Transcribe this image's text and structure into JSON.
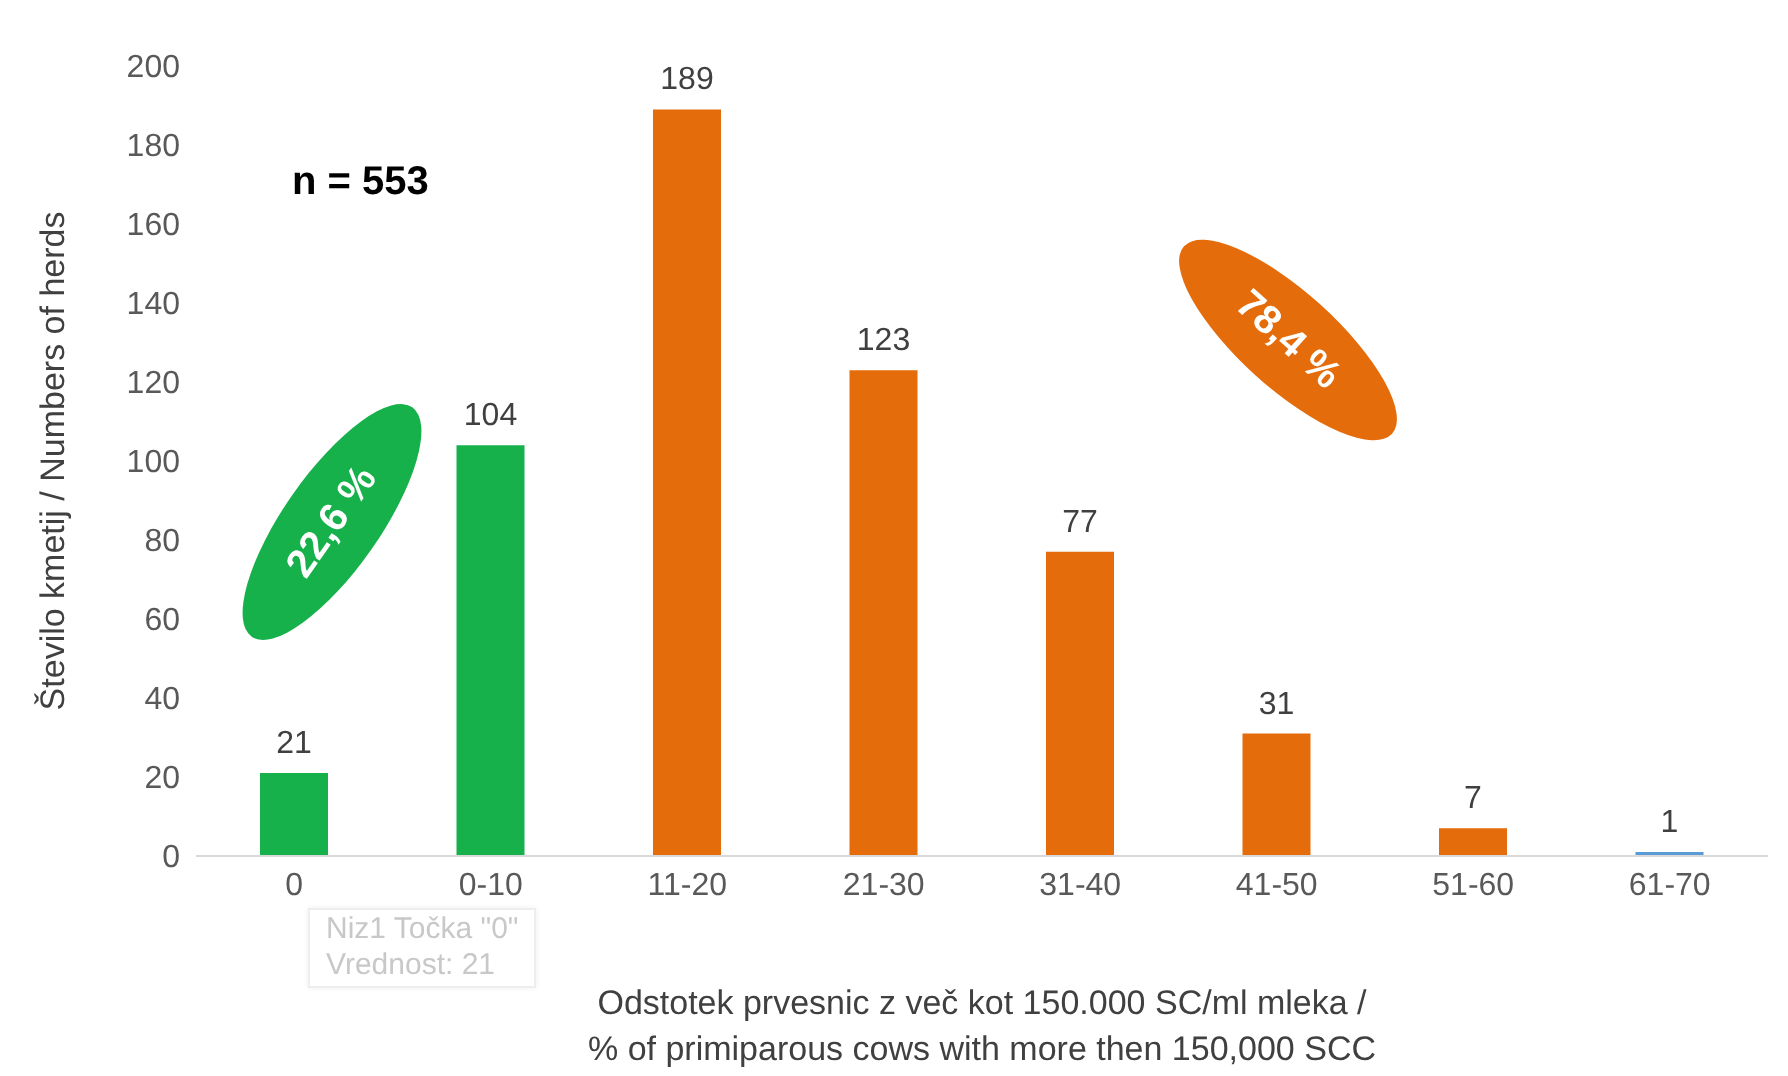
{
  "chart_data": {
    "type": "bar",
    "ylabel": "Število kmetij / Numbers of herds",
    "xlabel": "Odstotek prvesnic z več kot 150.000 SC/ml mleka /\n% of primiparous cows with more then 150,000 SCC",
    "categories": [
      "0",
      "0-10",
      "11-20",
      "21-30",
      "31-40",
      "41-50",
      "51-60",
      "61-70"
    ],
    "values": [
      21,
      104,
      189,
      123,
      77,
      31,
      7,
      1
    ],
    "colors": [
      "#16b14b",
      "#16b14b",
      "#e46c0a",
      "#e46c0a",
      "#e46c0a",
      "#e46c0a",
      "#e46c0a",
      "#5b9bd5"
    ],
    "ylim": [
      0,
      200
    ],
    "yticks": [
      0,
      20,
      40,
      60,
      80,
      100,
      120,
      140,
      160,
      180,
      200
    ],
    "data_labels": true,
    "grid": false,
    "annotations": [
      "n = 553",
      "22,6 %",
      "78,4 %",
      "Niz1 Točka \"0\"",
      "Vrednost: 21"
    ]
  }
}
